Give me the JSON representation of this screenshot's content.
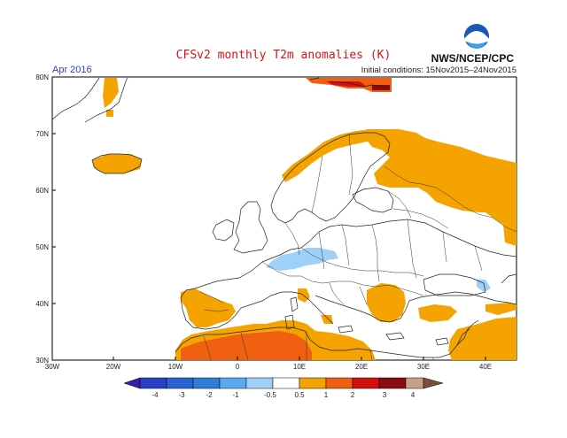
{
  "title": "CFSv2 monthly T2m anomalies (K)",
  "period": "Apr 2016",
  "initial_conditions": "Initial conditions: 15Nov2015–24Nov2015",
  "agency": "NWS/NCEP/CPC",
  "logo_text": "NOAA",
  "map": {
    "lon_range": [
      -30,
      45
    ],
    "lat_range": [
      30,
      80
    ],
    "lon_ticks": [
      "30W",
      "20W",
      "10W",
      "0",
      "10E",
      "20E",
      "30E",
      "40E"
    ],
    "lat_ticks": [
      "80N",
      "70N",
      "60N",
      "50N",
      "40N",
      "30N"
    ]
  },
  "legend": {
    "values": [
      "-4",
      "-3",
      "-2",
      "-1",
      "-0.5",
      "0.5",
      "1",
      "2",
      "3",
      "4"
    ],
    "colors": [
      "#3a1fa8",
      "#2a55c8",
      "#2e78d8",
      "#5aa8ee",
      "#9fd0f8",
      "#ffffff",
      "#f5a300",
      "#f06010",
      "#d21010",
      "#8a0c10",
      "#c8a08a",
      "#7a4f40"
    ]
  },
  "anomaly_regions": [
    {
      "label": "Iceland",
      "level": "0.5 to 1"
    },
    {
      "label": "Svalbard",
      "level": "1 to 4"
    },
    {
      "label": "Scandinavia north coast",
      "level": "0.5 to 1"
    },
    {
      "label": "Western Russia",
      "level": "0.5 to 1"
    },
    {
      "label": "Alps",
      "level": "-0.5 to -1"
    },
    {
      "label": "Iberian Peninsula",
      "level": "0.5 to 1"
    },
    {
      "label": "Italy",
      "level": "0.5 to 1"
    },
    {
      "label": "Greece / Balkans",
      "level": "0.5 to 1"
    },
    {
      "label": "Anatolia",
      "level": "0.5 to 1"
    },
    {
      "label": "North Africa",
      "level": "1 to 3"
    }
  ]
}
